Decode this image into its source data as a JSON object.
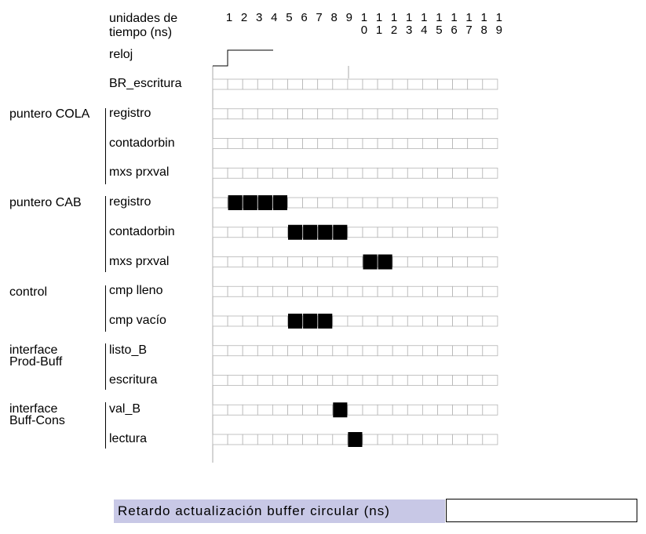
{
  "header": {
    "units_label": "unidades de\ntiempo (ns)",
    "clock_label": "reloj",
    "time_ticks": [
      "1",
      "2",
      "3",
      "4",
      "5",
      "6",
      "7",
      "8",
      "9",
      "10",
      "11",
      "12",
      "13",
      "14",
      "15",
      "16",
      "17",
      "18",
      "19"
    ]
  },
  "groups": [
    {
      "label": "puntero COLA"
    },
    {
      "label": "puntero CAB"
    },
    {
      "label": "control"
    },
    {
      "label": "interface\nProd-Buff"
    },
    {
      "label": "interface\nBuff-Cons"
    }
  ],
  "rows": [
    {
      "label": "BR_escritura",
      "filled": []
    },
    {
      "label": "registro",
      "filled": []
    },
    {
      "label": "contadorbin",
      "filled": []
    },
    {
      "label": "mxs prxval",
      "filled": []
    },
    {
      "label": "registro",
      "filled": [
        2,
        3,
        4,
        5
      ]
    },
    {
      "label": "contadorbin",
      "filled": [
        6,
        7,
        8,
        9
      ]
    },
    {
      "label": "mxs prxval",
      "filled": [
        11,
        12
      ]
    },
    {
      "label": "cmp lleno",
      "filled": []
    },
    {
      "label": "cmp vacío",
      "filled": [
        6,
        7,
        8
      ]
    },
    {
      "label": "listo_B",
      "filled": []
    },
    {
      "label": "escritura",
      "filled": []
    },
    {
      "label": "val_B",
      "filled": [
        9
      ]
    },
    {
      "label": "lectura",
      "filled": [
        10
      ]
    }
  ],
  "footer": {
    "label": "Retardo actualización buffer circular (ns)",
    "value": ""
  }
}
